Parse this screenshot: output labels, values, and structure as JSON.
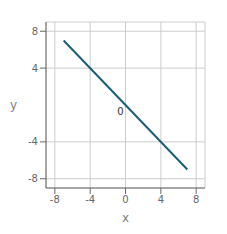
{
  "chart_data": {
    "type": "line",
    "x": [
      -7,
      7
    ],
    "values": [
      7,
      -7
    ],
    "color": "#1b5e78",
    "xlim": [
      -9,
      9
    ],
    "ylim": [
      -9,
      9
    ],
    "xticks": [
      -8,
      -4,
      0,
      4,
      8
    ],
    "yticks": [
      -8,
      -4,
      4,
      8
    ],
    "xlabel": "x",
    "ylabel": "y",
    "grid": true,
    "annotations": [
      {
        "text": "0",
        "x": -0.2,
        "y": -0.3
      }
    ]
  }
}
